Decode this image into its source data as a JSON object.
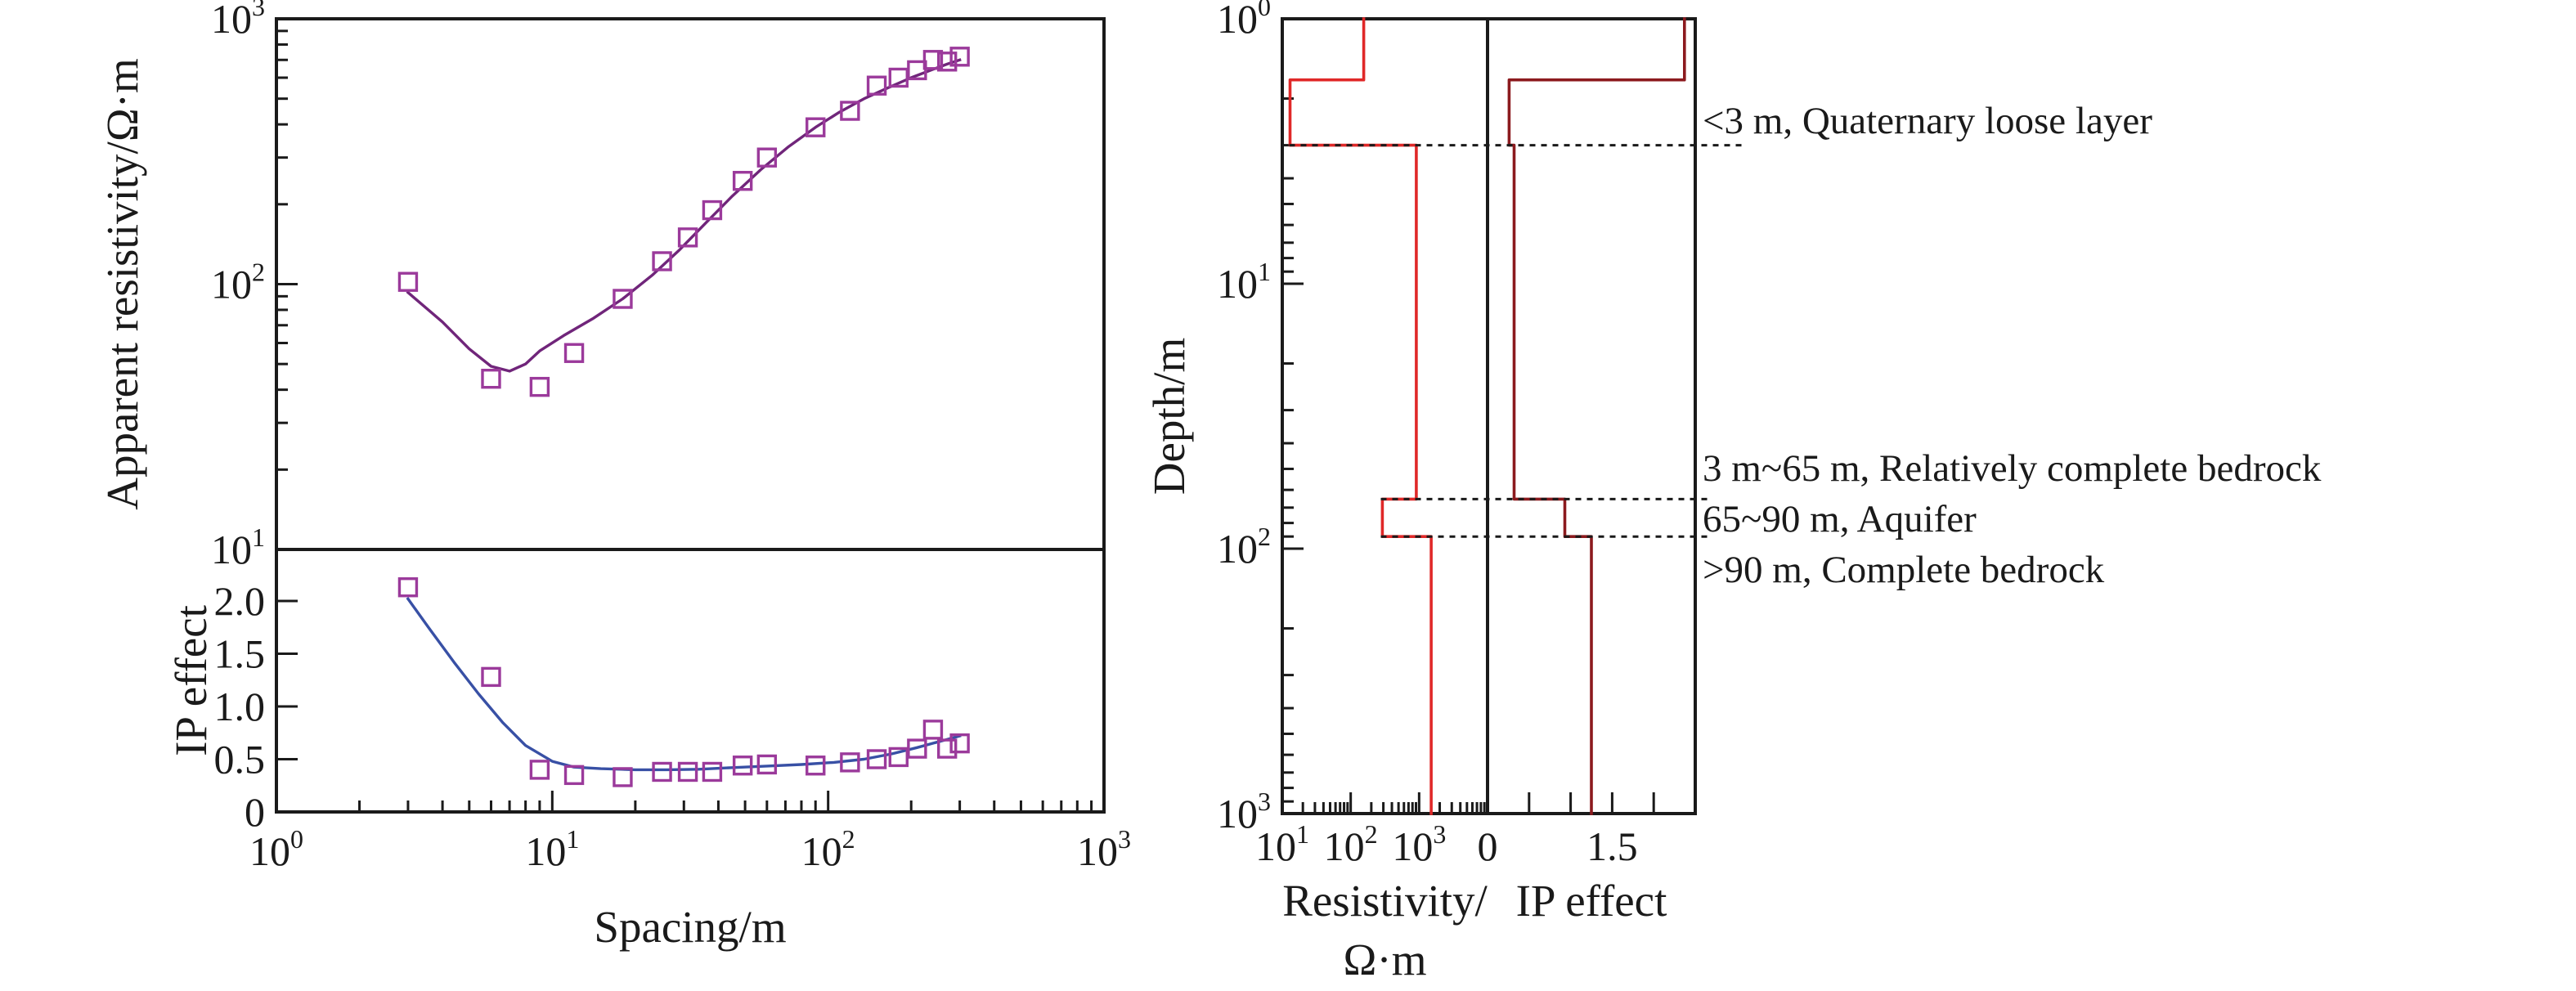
{
  "colors": {
    "background": "#ffffff",
    "axis": "#1a1a1a",
    "resistivity_curve": "#70257a",
    "ip_curve": "#3850a5",
    "marker": "#9b3a9b",
    "model_resistivity_line": "#e02828",
    "model_ip_line": "#8c1a1e",
    "boundary_dotted": "#1a1a1a"
  },
  "chart_data": [
    {
      "id": "sounding-curves",
      "type": "scatter",
      "xlabel": "Spacing/m",
      "x_scale": "log",
      "xlim": [
        1,
        1000
      ],
      "x_tick_labels": [
        "10^0",
        "10^1",
        "10^2",
        "10^3"
      ],
      "grid": "off",
      "legend": "none",
      "panels": [
        {
          "name": "apparent-resistivity",
          "ylabel": "Apparent resistivity/Ω·m",
          "y_scale": "log",
          "ylim": [
            10,
            1000
          ],
          "y_tick_labels": [
            "10^1",
            "10^2",
            "10^3"
          ],
          "marker": "open-square",
          "points_x": [
            3,
            6,
            9,
            12,
            18,
            25,
            31,
            38,
            49,
            60,
            90,
            120,
            150,
            180,
            210,
            240,
            270,
            300
          ],
          "points_y": [
            102,
            44,
            41,
            55,
            88,
            122,
            150,
            190,
            245,
            300,
            390,
            450,
            560,
            600,
            640,
            700,
            690,
            720
          ],
          "curve_x": [
            3,
            4,
            5,
            6,
            7,
            8,
            9,
            11,
            14,
            18,
            23,
            29,
            36,
            45,
            57,
            72,
            90,
            110,
            135,
            165,
            200,
            240,
            270,
            300
          ],
          "curve_y": [
            93,
            72,
            57,
            49,
            47,
            50,
            56,
            64,
            74,
            88,
            108,
            135,
            170,
            215,
            270,
            330,
            390,
            445,
            500,
            550,
            600,
            645,
            675,
            700
          ]
        },
        {
          "name": "ip-effect",
          "ylabel": "IP effect",
          "y_scale": "linear",
          "ylim": [
            0,
            2.5
          ],
          "y_tick_labels": [
            "0",
            "0.5",
            "1.0",
            "1.5",
            "2.0"
          ],
          "y_ticks": [
            0,
            0.5,
            1.0,
            1.5,
            2.0
          ],
          "marker": "open-square",
          "points_x": [
            3,
            6,
            9,
            12,
            18,
            25,
            31,
            38,
            49,
            60,
            90,
            120,
            150,
            180,
            210,
            240,
            270,
            300
          ],
          "points_y": [
            2.13,
            1.28,
            0.4,
            0.35,
            0.33,
            0.38,
            0.38,
            0.38,
            0.44,
            0.45,
            0.44,
            0.47,
            0.5,
            0.52,
            0.6,
            0.78,
            0.6,
            0.65
          ],
          "curve_x": [
            3,
            3.6,
            4.4,
            5.4,
            6.6,
            8,
            10,
            12,
            15,
            20,
            26,
            34,
            45,
            60,
            80,
            105,
            135,
            170,
            210,
            255,
            300
          ],
          "curve_y": [
            2.02,
            1.73,
            1.42,
            1.12,
            0.85,
            0.63,
            0.48,
            0.425,
            0.41,
            0.4,
            0.4,
            0.405,
            0.42,
            0.435,
            0.45,
            0.47,
            0.5,
            0.55,
            0.61,
            0.67,
            0.72
          ]
        }
      ]
    },
    {
      "id": "layered-model",
      "type": "line",
      "ylabel": "Depth/m",
      "y_scale": "log",
      "ylim": [
        1,
        1000
      ],
      "y_tick_labels": [
        "10^0",
        "10^1",
        "10^2",
        "10^3"
      ],
      "panels": [
        {
          "name": "model-resistivity",
          "xlabel_line1": "Resistivity/",
          "xlabel_line2": "Ω·m",
          "x_scale": "log",
          "xlim": [
            10,
            10000
          ],
          "x_tick_labels": [
            "10^1",
            "10^2",
            "10^3"
          ]
        },
        {
          "name": "model-ip",
          "xlabel": "IP effect",
          "x_scale": "linear",
          "xlim": [
            0,
            2.5
          ],
          "x_ticks": [
            0.5,
            1.0,
            1.5,
            2.0
          ],
          "x_tick_labels": [
            "0",
            "1.5"
          ],
          "x_tick_label_values": [
            0,
            1.5
          ]
        }
      ],
      "layers": [
        {
          "top_m": 1,
          "bottom_m": 1.7,
          "resistivity_ohm_m": 155,
          "ip_effect": 2.37
        },
        {
          "top_m": 1.7,
          "bottom_m": 3,
          "resistivity_ohm_m": 13,
          "ip_effect": 0.26
        },
        {
          "top_m": 3,
          "bottom_m": 65,
          "resistivity_ohm_m": 910,
          "ip_effect": 0.32
        },
        {
          "top_m": 65,
          "bottom_m": 90,
          "resistivity_ohm_m": 290,
          "ip_effect": 0.93
        },
        {
          "top_m": 90,
          "bottom_m": 1000,
          "resistivity_ohm_m": 1500,
          "ip_effect": 1.25
        }
      ],
      "boundary_depths_m": [
        3,
        65,
        90
      ],
      "annotations": [
        {
          "text": "<3 m, Quaternary loose layer",
          "boundary_m": 3
        },
        {
          "text": "3 m~65 m, Relatively complete bedrock",
          "boundary_m": 65
        },
        {
          "text": "65~90 m, Aquifer",
          "boundary_m": 90
        },
        {
          "text": ">90 m, Complete bedrock",
          "boundary_m": null
        }
      ]
    }
  ]
}
